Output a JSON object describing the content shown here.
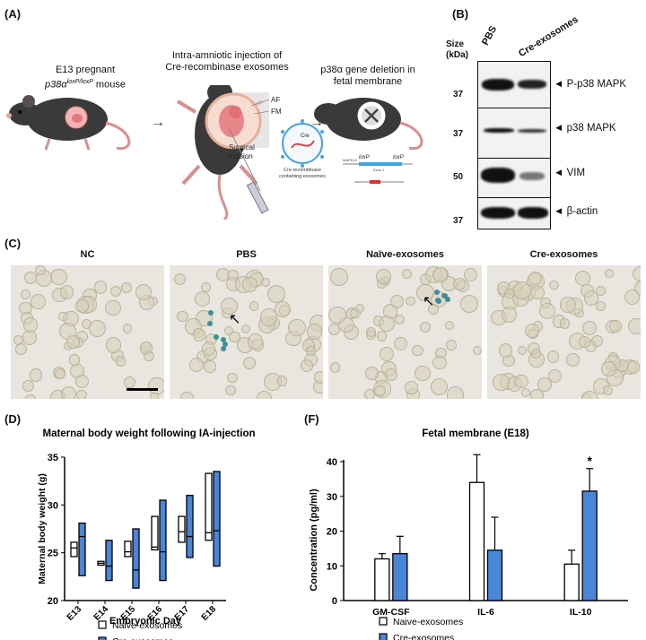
{
  "panelA": {
    "label": "(A)",
    "step1_line1": "E13 pregnant",
    "step1_line2": "p38α",
    "step1_sup": "loxP/loxP",
    "step1_line2b": " mouse",
    "step2_line1": "Intra-amniotic injection of",
    "step2_line2": "Cre-recombinase exosomes",
    "step3_line1": "p38α gene deletion in",
    "step3_line2": "fetal membrane",
    "af": "AF",
    "fm": "FM",
    "surgical1": "Surgical",
    "surgical2": "incision",
    "cre": "Cre",
    "exo_caption1": "Cre-recombinase",
    "exo_caption2": "containing exosomes",
    "loxp1": "loxP",
    "loxp2": "loxP",
    "gene_left": "MAPK14",
    "exon": "Exon 1"
  },
  "panelB": {
    "label": "(B)",
    "size_label1": "Size",
    "size_label2": "(kDa)",
    "lanes": [
      "PBS",
      "Cre-exosomes"
    ],
    "blots": [
      {
        "name": "P-p38 MAPK",
        "mw": "37"
      },
      {
        "name": "p38 MAPK",
        "mw": "37"
      },
      {
        "name": "VIM",
        "mw": "50"
      },
      {
        "name": "β-actin",
        "mw": "37"
      }
    ]
  },
  "panelC": {
    "label": "(C)",
    "titles": [
      "NC",
      "PBS",
      "Naïve-exosomes",
      "Cre-exosomes"
    ]
  },
  "chart_data": [
    {
      "panel": "(D)",
      "type": "box",
      "title": "Maternal body weight following IA-injection",
      "xlabel": "Embryonic Day",
      "ylabel": "Maternal body weight (g)",
      "ylim": [
        20,
        35
      ],
      "yticks": [
        20,
        25,
        30,
        35
      ],
      "categories": [
        "E13",
        "E14",
        "E15",
        "E16",
        "E17",
        "E18"
      ],
      "series": [
        {
          "name": "Naive-exosomes",
          "color": "#ffffff",
          "min": [
            24.6,
            23.7,
            24.6,
            25.3,
            26.1,
            26.3
          ],
          "median": [
            25.5,
            23.9,
            25.1,
            25.6,
            27.2,
            27.1
          ],
          "max": [
            26.1,
            24.1,
            26.2,
            28.8,
            28.8,
            33.3
          ]
        },
        {
          "name": "Cre-exosomes",
          "color": "#4a86d8",
          "min": [
            22.6,
            22.1,
            21.3,
            22.1,
            24.5,
            23.6
          ],
          "median": [
            26.7,
            23.6,
            23.2,
            25.1,
            26.7,
            27.3
          ],
          "max": [
            28.1,
            26.3,
            27.5,
            30.5,
            31.0,
            33.5
          ]
        }
      ],
      "legend": "bottom"
    },
    {
      "panel": "(F)",
      "type": "bar",
      "title": "Fetal membrane (E18)",
      "ylabel": "Concentration (pg/ml)",
      "ylim": [
        0,
        40
      ],
      "yticks": [
        0,
        10,
        20,
        30,
        40
      ],
      "categories": [
        "GM-CSF",
        "IL-6",
        "IL-10"
      ],
      "series": [
        {
          "name": "Naive-exosomes",
          "color": "#ffffff",
          "values": [
            12,
            34,
            10.5
          ],
          "errors": [
            1.5,
            8,
            4
          ]
        },
        {
          "name": "Cre-exosomes",
          "color": "#4a86d8",
          "values": [
            13.5,
            14.5,
            31.5
          ],
          "errors": [
            5,
            9.5,
            6.5
          ]
        }
      ],
      "annotation": "*",
      "legend": "bottom"
    }
  ]
}
